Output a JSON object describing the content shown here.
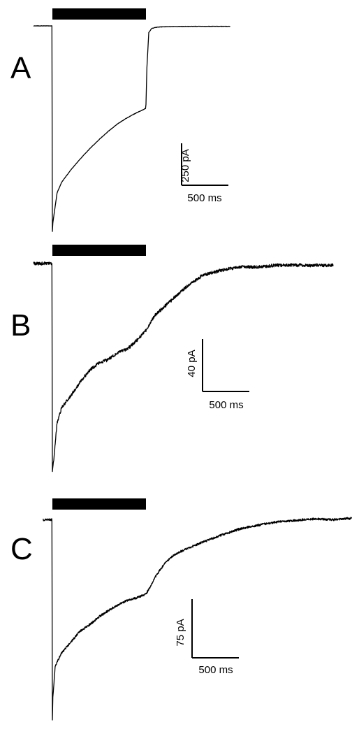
{
  "figure": {
    "panels": [
      {
        "letter": "A",
        "amp_label": "250 pA",
        "time_label": "500 ms"
      },
      {
        "letter": "B",
        "amp_label": "40 pA",
        "time_label": "500 ms"
      },
      {
        "letter": "C",
        "amp_label": "75 pA",
        "time_label": "500 ms"
      }
    ]
  },
  "chart_data": [
    {
      "type": "line",
      "panel": "A",
      "xlabel": "",
      "ylabel": "",
      "stimulus_bar": {
        "start_ms": 0,
        "end_ms": 1000
      },
      "scale_bar": {
        "current_pA": 250,
        "time_ms": 500
      },
      "series": [
        {
          "x": [
            -200,
            -5,
            0,
            5,
            50,
            100,
            200,
            300,
            400,
            500,
            600,
            700,
            800,
            900,
            995,
            1000,
            1010,
            1030,
            1060,
            1100,
            1150,
            1300,
            1500,
            1700,
            1900
          ],
          "y": [
            0,
            0,
            -1230,
            -1180,
            -1000,
            -935,
            -860,
            -795,
            -735,
            -680,
            -630,
            -585,
            -550,
            -520,
            -495,
            -470,
            -250,
            -40,
            -16,
            -10,
            -6,
            -4,
            -3,
            -3,
            -3
          ]
        }
      ]
    },
    {
      "type": "line",
      "panel": "B",
      "xlabel": "",
      "ylabel": "",
      "stimulus_bar": {
        "start_ms": 0,
        "end_ms": 1000
      },
      "scale_bar": {
        "current_pA": 40,
        "time_ms": 500
      },
      "series": [
        {
          "x": [
            -200,
            -5,
            0,
            10,
            50,
            100,
            200,
            300,
            400,
            500,
            600,
            700,
            800,
            900,
            1000,
            1100,
            1200,
            1300,
            1400,
            1500,
            1600,
            1800,
            2000,
            2200,
            2400,
            2600,
            2800,
            3000
          ],
          "y": [
            0,
            0,
            -121,
            -117,
            -93,
            -84,
            -77,
            -69,
            -62,
            -58,
            -56,
            -52,
            -50,
            -45,
            -39,
            -30,
            -25,
            -20,
            -15,
            -11,
            -7,
            -4,
            -2,
            -2,
            -1,
            -1,
            -1,
            -1
          ]
        }
      ]
    },
    {
      "type": "line",
      "panel": "C",
      "xlabel": "",
      "ylabel": "",
      "stimulus_bar": {
        "start_ms": 0,
        "end_ms": 1000
      },
      "scale_bar": {
        "current_pA": 75,
        "time_ms": 500
      },
      "series": [
        {
          "x": [
            -100,
            -5,
            0,
            5,
            30,
            100,
            200,
            300,
            400,
            500,
            600,
            700,
            800,
            900,
            1000,
            1050,
            1100,
            1200,
            1300,
            1400,
            1600,
            1800,
            2000,
            2200,
            2400,
            2600,
            2800,
            3000,
            3200
          ],
          "y": [
            -3,
            -3,
            -260,
            -230,
            -190,
            -173,
            -159,
            -145,
            -137,
            -127,
            -119,
            -112,
            -106,
            -103,
            -98,
            -88,
            -76,
            -59,
            -48,
            -42,
            -32,
            -23,
            -15,
            -10,
            -6,
            -4,
            -2,
            -3,
            -1
          ]
        }
      ]
    }
  ]
}
